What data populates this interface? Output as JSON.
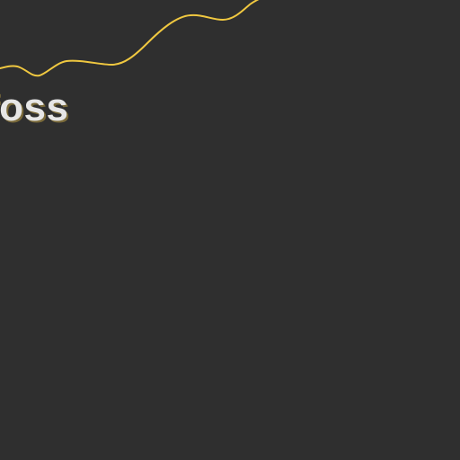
{
  "branding": {
    "wordmark": "foss",
    "text_color": "#e6e6e6",
    "shadow_color": "#7a6a3a"
  },
  "theme": {
    "background": "#2f2f2f",
    "accent": "#f0c840"
  },
  "decoration": {
    "accent_line_icon": "wave-line"
  }
}
